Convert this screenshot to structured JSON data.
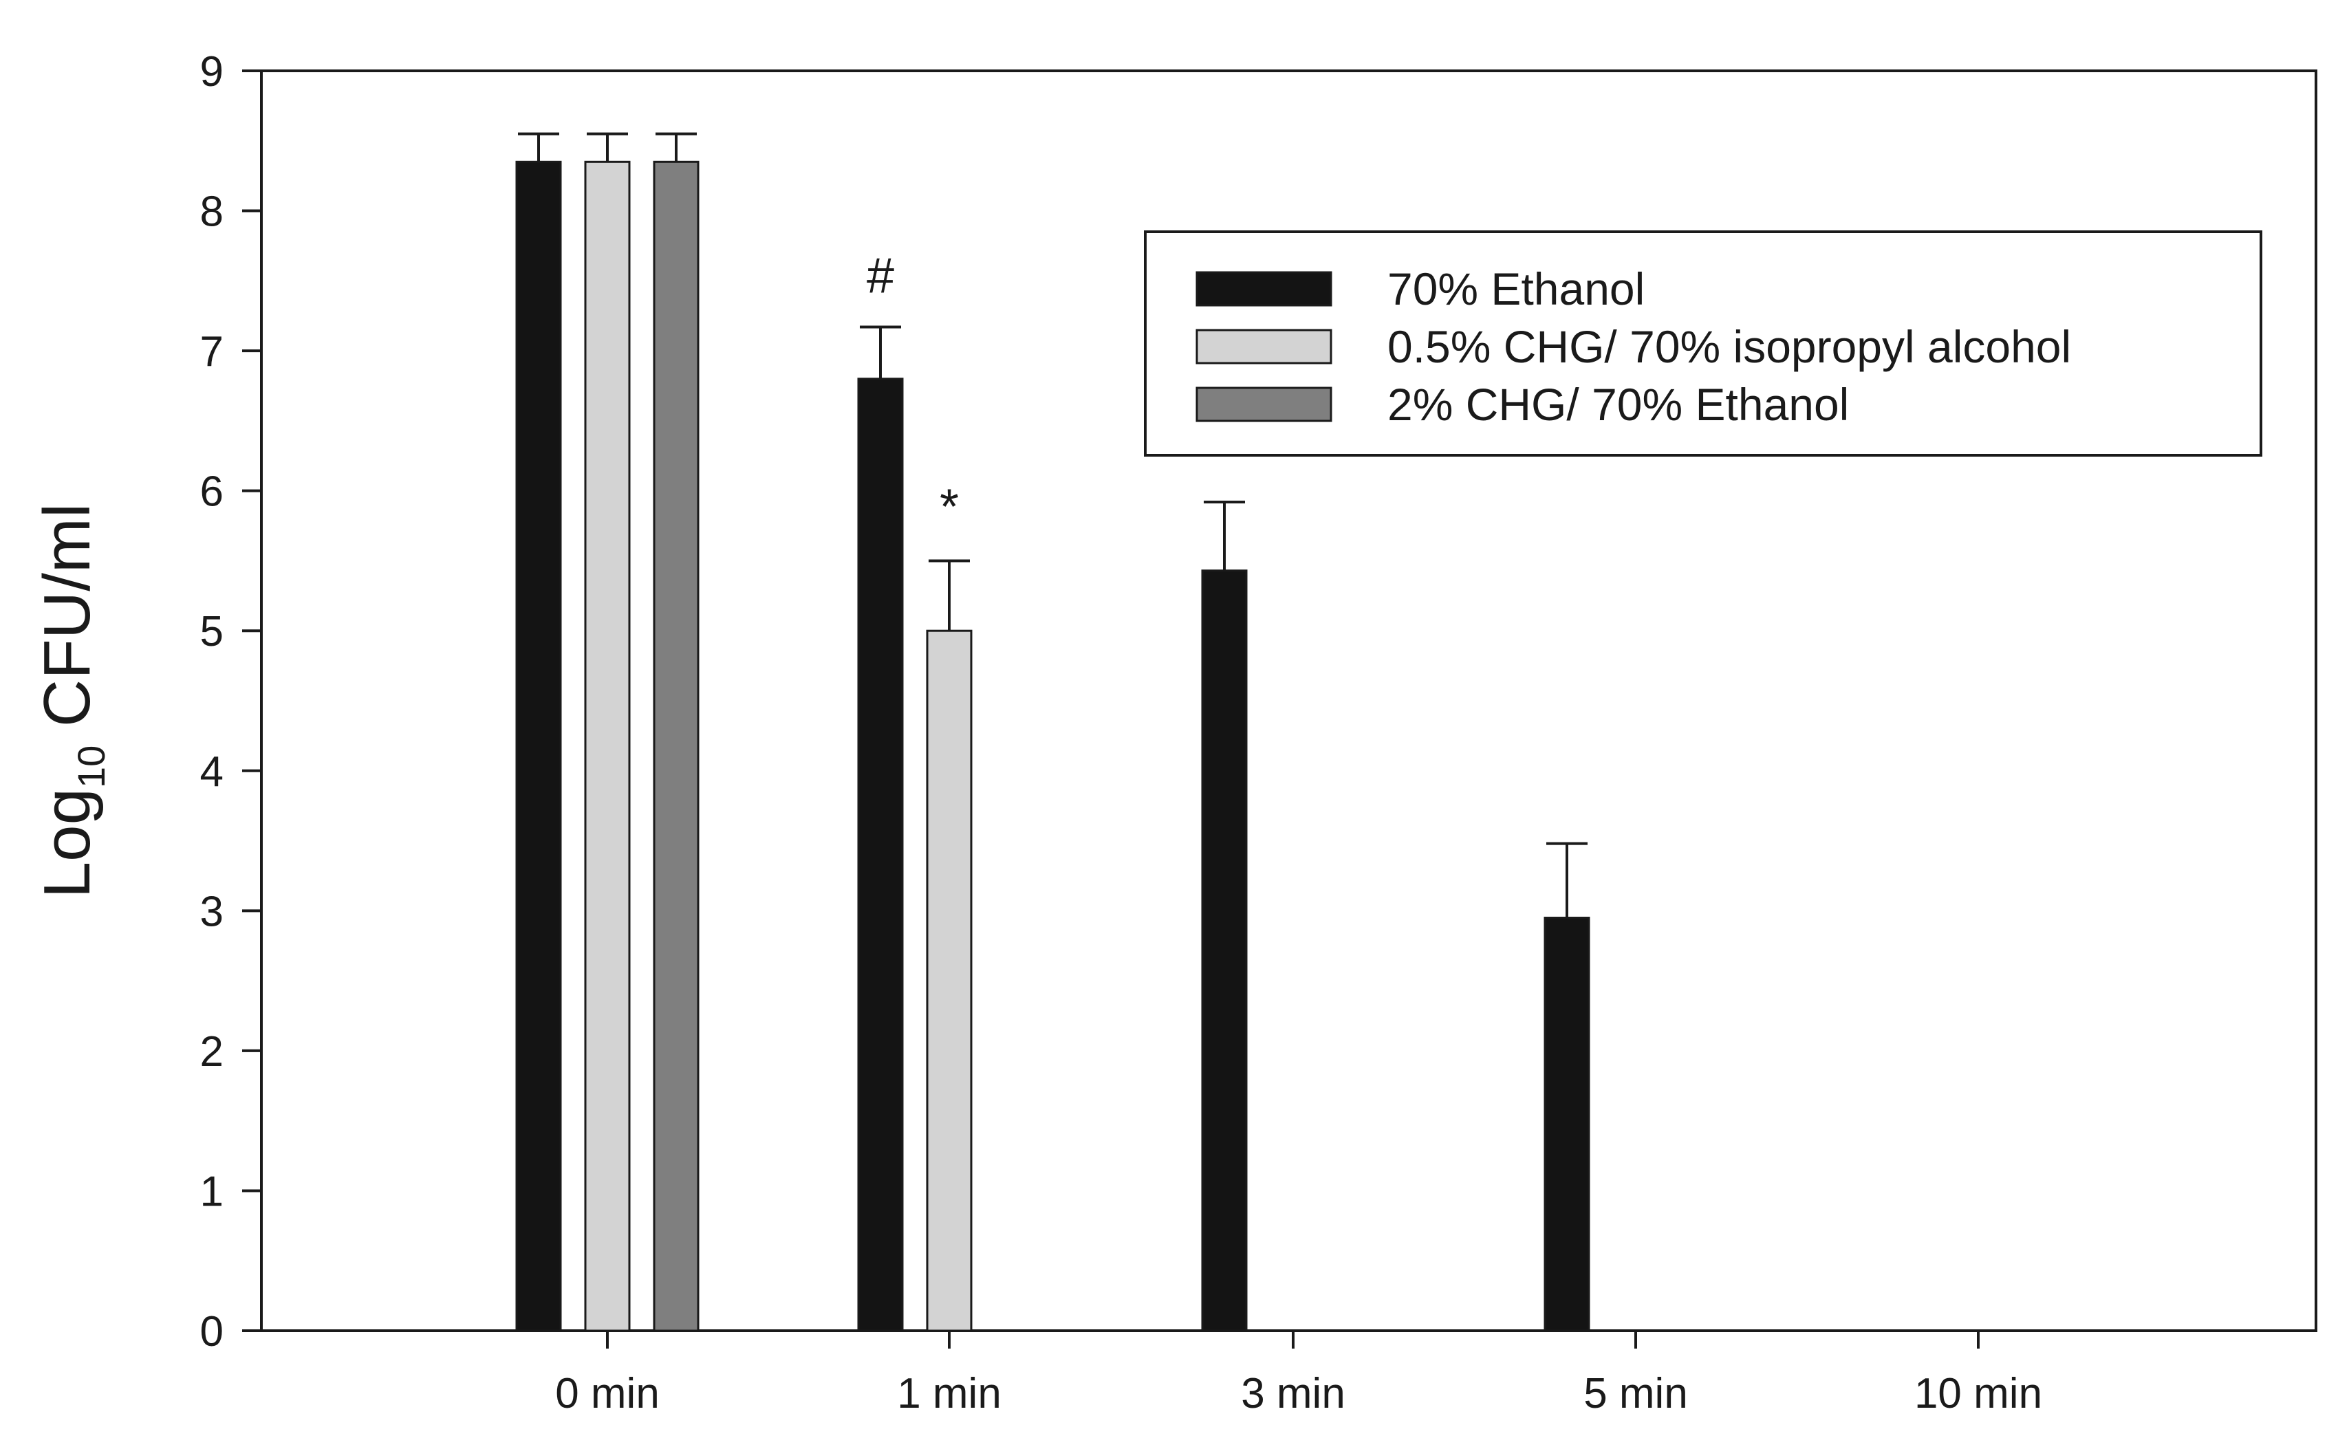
{
  "chart_data": {
    "type": "bar",
    "title": "",
    "xlabel": "",
    "ylabel_main": "Log",
    "ylabel_sub": "10",
    "ylabel_unit": " CFU/ml",
    "ylim": [
      0,
      9
    ],
    "yticks": [
      "0",
      "1",
      "2",
      "3",
      "4",
      "5",
      "6",
      "7",
      "8",
      "9"
    ],
    "categories": [
      "0 min",
      "1 min",
      "3 min",
      "5 min",
      "10 min"
    ],
    "series": [
      {
        "name": "70% Ethanol",
        "color": "#141414",
        "values": [
          8.35,
          6.8,
          5.43,
          2.95,
          0
        ],
        "errors": [
          0.2,
          0.37,
          0.49,
          0.53,
          0
        ]
      },
      {
        "name": "0.5% CHG/ 70% isopropyl alcohol",
        "color": "#d3d3d3",
        "values": [
          8.35,
          5.0,
          0,
          0,
          0
        ],
        "errors": [
          0.2,
          0.5,
          0,
          0,
          0
        ]
      },
      {
        "name": "2% CHG/ 70% Ethanol",
        "color": "#7f7f7f",
        "values": [
          8.35,
          0,
          0,
          0,
          0
        ],
        "errors": [
          0.2,
          0,
          0,
          0,
          0
        ]
      }
    ],
    "annotations": [
      {
        "text": "#",
        "category": "1 min",
        "series": 0,
        "value": 7.15
      },
      {
        "text": "*",
        "category": "1 min",
        "series": 1,
        "value": 5.5
      }
    ],
    "legend_position": "top-right",
    "grid": false
  }
}
